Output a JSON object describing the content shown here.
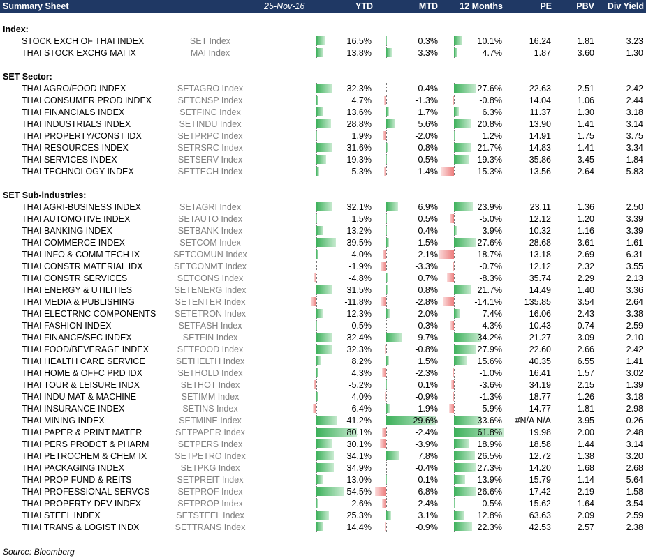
{
  "header": {
    "title": "Summary Sheet",
    "date": "25-Nov-16",
    "columns": [
      "YTD",
      "MTD",
      "12 Months",
      "PE",
      "PBV",
      "Div Yield"
    ]
  },
  "sections": [
    {
      "title": "Index:",
      "rows": [
        {
          "name": "STOCK EXCH OF THAI INDEX",
          "ticker": "SET Index",
          "ytd": "16.5%",
          "mtd": "0.3%",
          "m12": "10.1%",
          "pe": "16.24",
          "pbv": "1.81",
          "dy": "3.23"
        },
        {
          "name": "THAI STOCK EXCHG MAI IX",
          "ticker": "MAI Index",
          "ytd": "13.8%",
          "mtd": "3.3%",
          "m12": "4.7%",
          "pe": "1.87",
          "pbv": "3.60",
          "dy": "1.30"
        }
      ]
    },
    {
      "title": "SET Sector:",
      "rows": [
        {
          "name": "THAI AGRO/FOOD INDEX",
          "ticker": "SETAGRO Index",
          "ytd": "32.3%",
          "mtd": "-0.4%",
          "m12": "27.6%",
          "pe": "22.63",
          "pbv": "2.51",
          "dy": "2.42"
        },
        {
          "name": "THAI CONSUMER PROD INDEX",
          "ticker": "SETCNSP Index",
          "ytd": "4.7%",
          "mtd": "-1.3%",
          "m12": "-0.8%",
          "pe": "14.04",
          "pbv": "1.06",
          "dy": "2.44"
        },
        {
          "name": "THAI FINANCIALS INDEX",
          "ticker": "SETFINC Index",
          "ytd": "13.6%",
          "mtd": "1.7%",
          "m12": "6.3%",
          "pe": "11.37",
          "pbv": "1.30",
          "dy": "3.18"
        },
        {
          "name": "THAI INDUSTRIALS INDEX",
          "ticker": "SETINDU Index",
          "ytd": "28.8%",
          "mtd": "5.6%",
          "m12": "20.8%",
          "pe": "13.90",
          "pbv": "1.41",
          "dy": "3.14"
        },
        {
          "name": "THAI PROPERTY/CONST IDX",
          "ticker": "SETPRPC Index",
          "ytd": "1.9%",
          "mtd": "-2.0%",
          "m12": "1.2%",
          "pe": "14.91",
          "pbv": "1.75",
          "dy": "3.75"
        },
        {
          "name": "THAI RESOURCES INDEX",
          "ticker": "SETRSRC Index",
          "ytd": "31.6%",
          "mtd": "0.8%",
          "m12": "21.7%",
          "pe": "14.83",
          "pbv": "1.41",
          "dy": "3.34"
        },
        {
          "name": "THAI SERVICES INDEX",
          "ticker": "SETSERV Index",
          "ytd": "19.3%",
          "mtd": "0.5%",
          "m12": "19.3%",
          "pe": "35.86",
          "pbv": "3.45",
          "dy": "1.84"
        },
        {
          "name": "THAI TECHNOLOGY INDEX",
          "ticker": "SETTECH Index",
          "ytd": "5.3%",
          "mtd": "-1.4%",
          "m12": "-15.3%",
          "pe": "13.56",
          "pbv": "2.64",
          "dy": "5.83"
        }
      ]
    },
    {
      "title": "SET Sub-industries:",
      "rows": [
        {
          "name": "THAI AGRI-BUSINESS INDEX",
          "ticker": "SETAGRI Index",
          "ytd": "32.1%",
          "mtd": "6.9%",
          "m12": "23.9%",
          "pe": "23.11",
          "pbv": "1.36",
          "dy": "2.50"
        },
        {
          "name": "THAI AUTOMOTIVE INDEX",
          "ticker": "SETAUTO Index",
          "ytd": "1.5%",
          "mtd": "0.5%",
          "m12": "-5.0%",
          "pe": "12.12",
          "pbv": "1.20",
          "dy": "3.39"
        },
        {
          "name": "THAI BANKING INDEX",
          "ticker": "SETBANK Index",
          "ytd": "13.2%",
          "mtd": "0.4%",
          "m12": "3.9%",
          "pe": "10.32",
          "pbv": "1.16",
          "dy": "3.39"
        },
        {
          "name": "THAI COMMERCE INDEX",
          "ticker": "SETCOM Index",
          "ytd": "39.5%",
          "mtd": "1.5%",
          "m12": "27.6%",
          "pe": "28.68",
          "pbv": "3.61",
          "dy": "1.61"
        },
        {
          "name": "THAI INFO & COMM TECH IX",
          "ticker": "SETCOMUN Index",
          "ytd": "4.0%",
          "mtd": "-2.1%",
          "m12": "-18.7%",
          "pe": "13.18",
          "pbv": "2.69",
          "dy": "6.31"
        },
        {
          "name": "THAI CONSTR MATERIAL IDX",
          "ticker": "SETCONMT Index",
          "ytd": "-1.9%",
          "mtd": "-3.3%",
          "m12": "-0.7%",
          "pe": "12.12",
          "pbv": "2.32",
          "dy": "3.55"
        },
        {
          "name": "THAI CONSTR SERVICES",
          "ticker": "SETCONS Index",
          "ytd": "-4.8%",
          "mtd": "0.7%",
          "m12": "-8.3%",
          "pe": "35.74",
          "pbv": "2.29",
          "dy": "2.13"
        },
        {
          "name": "THAI ENERGY & UTILITIES",
          "ticker": "SETENERG Index",
          "ytd": "31.5%",
          "mtd": "0.8%",
          "m12": "21.7%",
          "pe": "14.49",
          "pbv": "1.40",
          "dy": "3.36"
        },
        {
          "name": "THAI MEDIA & PUBLISHING",
          "ticker": "SETENTER Index",
          "ytd": "-11.8%",
          "mtd": "-2.8%",
          "m12": "-14.1%",
          "pe": "135.85",
          "pbv": "3.54",
          "dy": "2.64"
        },
        {
          "name": "THAI ELECTRNC COMPONENTS",
          "ticker": "SETETRON Index",
          "ytd": "12.3%",
          "mtd": "2.0%",
          "m12": "7.4%",
          "pe": "16.06",
          "pbv": "2.43",
          "dy": "3.38"
        },
        {
          "name": "THAI FASHION INDEX",
          "ticker": "SETFASH Index",
          "ytd": "0.5%",
          "mtd": "-0.3%",
          "m12": "-4.3%",
          "pe": "10.43",
          "pbv": "0.74",
          "dy": "2.59"
        },
        {
          "name": "THAI FINANCE/SEC INDEX",
          "ticker": "SETFIN Index",
          "ytd": "32.4%",
          "mtd": "9.7%",
          "m12": "34.2%",
          "pe": "21.27",
          "pbv": "3.09",
          "dy": "2.10"
        },
        {
          "name": "THAI FOOD/BEVERAGE INDEX",
          "ticker": "SETFOOD Index",
          "ytd": "32.3%",
          "mtd": "-0.8%",
          "m12": "27.9%",
          "pe": "22.60",
          "pbv": "2.66",
          "dy": "2.42"
        },
        {
          "name": "THAI HEALTH CARE SERVICE",
          "ticker": "SETHELTH Index",
          "ytd": "8.2%",
          "mtd": "1.5%",
          "m12": "15.6%",
          "pe": "40.35",
          "pbv": "6.55",
          "dy": "1.41"
        },
        {
          "name": "THAI HOME & OFFC PRD IDX",
          "ticker": "SETHOLD Index",
          "ytd": "4.3%",
          "mtd": "-2.3%",
          "m12": "-1.0%",
          "pe": "16.41",
          "pbv": "1.57",
          "dy": "3.02"
        },
        {
          "name": "THAI TOUR & LEISURE INDX",
          "ticker": "SETHOT Index",
          "ytd": "-5.2%",
          "mtd": "0.1%",
          "m12": "-3.6%",
          "pe": "34.19",
          "pbv": "2.15",
          "dy": "1.39"
        },
        {
          "name": "THAI INDU MAT & MACHINE",
          "ticker": "SETIMM Index",
          "ytd": "4.0%",
          "mtd": "-0.9%",
          "m12": "-1.3%",
          "pe": "18.77",
          "pbv": "1.26",
          "dy": "3.18"
        },
        {
          "name": "THAI INSURANCE INDEX",
          "ticker": "SETINS Index",
          "ytd": "-6.4%",
          "mtd": "1.9%",
          "m12": "-5.9%",
          "pe": "14.77",
          "pbv": "1.81",
          "dy": "2.98"
        },
        {
          "name": "THAI MINING INDEX",
          "ticker": "SETMINE Index",
          "ytd": "41.2%",
          "mtd": "29.6%",
          "m12": "33.6%",
          "pe": "#N/A N/A",
          "pbv": "3.95",
          "dy": "0.26"
        },
        {
          "name": "THAI PAPER & PRINT MATER",
          "ticker": "SETPAPER Index",
          "ytd": "80.1%",
          "mtd": "-2.4%",
          "m12": "61.8%",
          "pe": "19.98",
          "pbv": "2.00",
          "dy": "2.48"
        },
        {
          "name": "THAI PERS PRODCT & PHARM",
          "ticker": "SETPERS Index",
          "ytd": "30.1%",
          "mtd": "-3.9%",
          "m12": "18.9%",
          "pe": "18.58",
          "pbv": "1.44",
          "dy": "3.14"
        },
        {
          "name": "THAI PETROCHEM & CHEM IX",
          "ticker": "SETPETRO Index",
          "ytd": "34.1%",
          "mtd": "7.8%",
          "m12": "26.5%",
          "pe": "12.72",
          "pbv": "1.38",
          "dy": "3.20"
        },
        {
          "name": "THAI PACKAGING INDEX",
          "ticker": "SETPKG Index",
          "ytd": "34.9%",
          "mtd": "-0.4%",
          "m12": "27.3%",
          "pe": "14.20",
          "pbv": "1.68",
          "dy": "2.68"
        },
        {
          "name": "THAI PROP FUND & REITS",
          "ticker": "SETPREIT Index",
          "ytd": "13.0%",
          "mtd": "0.1%",
          "m12": "13.9%",
          "pe": "15.79",
          "pbv": "1.14",
          "dy": "5.64"
        },
        {
          "name": "THAI PROFESSIONAL SERVCS",
          "ticker": "SETPROF Index",
          "ytd": "54.5%",
          "mtd": "-6.8%",
          "m12": "26.6%",
          "pe": "17.42",
          "pbv": "2.19",
          "dy": "1.58"
        },
        {
          "name": "THAI PROPERTY DEV INDEX",
          "ticker": "SETPROP Index",
          "ytd": "2.6%",
          "mtd": "-2.4%",
          "m12": "0.5%",
          "pe": "15.62",
          "pbv": "1.64",
          "dy": "3.54"
        },
        {
          "name": "THAI STEEL INDEX",
          "ticker": "SETSTEEL Index",
          "ytd": "25.3%",
          "mtd": "3.1%",
          "m12": "12.8%",
          "pe": "63.63",
          "pbv": "2.09",
          "dy": "2.59"
        },
        {
          "name": "THAI TRANS & LOGIST INDX",
          "ticker": "SETTRANS Index",
          "ytd": "14.4%",
          "mtd": "-0.9%",
          "m12": "22.3%",
          "pe": "42.53",
          "pbv": "2.57",
          "dy": "2.38"
        }
      ]
    }
  ],
  "source": "Source: Bloomberg",
  "colors": {
    "header_bg": "#1F3864",
    "positive_bar": "#3cb05a",
    "negative_bar": "#ec7b7b",
    "ticker_text": "#7f7f7f"
  }
}
